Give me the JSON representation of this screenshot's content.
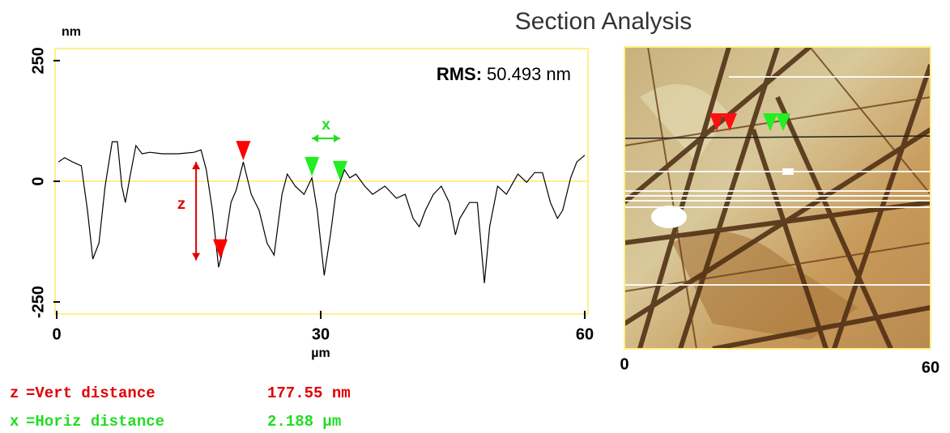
{
  "title": "Section Analysis",
  "chart_data": {
    "type": "line",
    "y_unit": "nm",
    "x_unit": "µm",
    "rms_label": "RMS:",
    "rms_value": "50.493 nm",
    "x": [
      0.2,
      0.9,
      1.8,
      2.8,
      3.5,
      4.1,
      4.8,
      5.5,
      6.3,
      6.9,
      7.4,
      7.8,
      8.3,
      9.0,
      9.7,
      10.6,
      12.0,
      13.8,
      15.6,
      16.4,
      17.0,
      17.7,
      18.4,
      19.1,
      19.8,
      20.4,
      21.2,
      22.1,
      23.0,
      23.9,
      24.7,
      25.6,
      26.2,
      27.1,
      28.1,
      29.0,
      29.6,
      30.4,
      31.1,
      31.7,
      32.7,
      33.3,
      34.0,
      35.0,
      35.9,
      37.3,
      38.6,
      39.6,
      40.5,
      41.2,
      41.9,
      42.8,
      43.7,
      44.6,
      45.3,
      45.8,
      46.9,
      47.8,
      48.6,
      49.2,
      50.1,
      51.1,
      52.4,
      53.4,
      54.3,
      55.2,
      56.1,
      56.9,
      57.5,
      58.4,
      59.1,
      60.0
    ],
    "values": [
      40,
      49,
      40,
      32,
      -60,
      -161,
      -128,
      -10,
      82,
      82,
      -10,
      -44,
      7,
      74,
      57,
      60,
      57,
      57,
      60,
      65,
      24,
      -60,
      -178,
      -128,
      -44,
      -18,
      40,
      -27,
      -60,
      -128,
      -153,
      -27,
      15,
      -10,
      -27,
      7,
      -60,
      -195,
      -111,
      -27,
      24,
      7,
      15,
      -10,
      -27,
      -10,
      -35,
      -27,
      -77,
      -94,
      -60,
      -27,
      -10,
      -44,
      -111,
      -77,
      -44,
      -44,
      -211,
      -94,
      -10,
      -27,
      15,
      -2,
      18,
      18,
      -44,
      -77,
      -60,
      7,
      40,
      54
    ],
    "color": "#000000",
    "xlim": [
      0,
      60
    ],
    "ylim": [
      -275,
      275
    ],
    "xticks": [
      0,
      30,
      60
    ],
    "yticks": [
      -250,
      0,
      250
    ],
    "frame_color": "#fff08a",
    "zero_line": true,
    "cursors": [
      {
        "color": "#ff0000",
        "x": 21.2
      },
      {
        "color": "#ff0000",
        "x": 18.6
      },
      {
        "color": "#22ee22",
        "x": 29.0
      },
      {
        "color": "#22ee22",
        "x": 32.2
      }
    ],
    "annotations": [
      {
        "text": "z",
        "color": "#e00000"
      },
      {
        "text": "x",
        "color": "#22dd22"
      }
    ]
  },
  "image": {
    "xticks": [
      0,
      60
    ]
  },
  "measurements": [
    {
      "symbol": "z",
      "label": "=Vert distance",
      "value": "177.55 nm",
      "color": "#e00000"
    },
    {
      "symbol": "x",
      "label": "=Horiz distance",
      "value": "2.188 µm",
      "color": "#22dd22"
    }
  ]
}
